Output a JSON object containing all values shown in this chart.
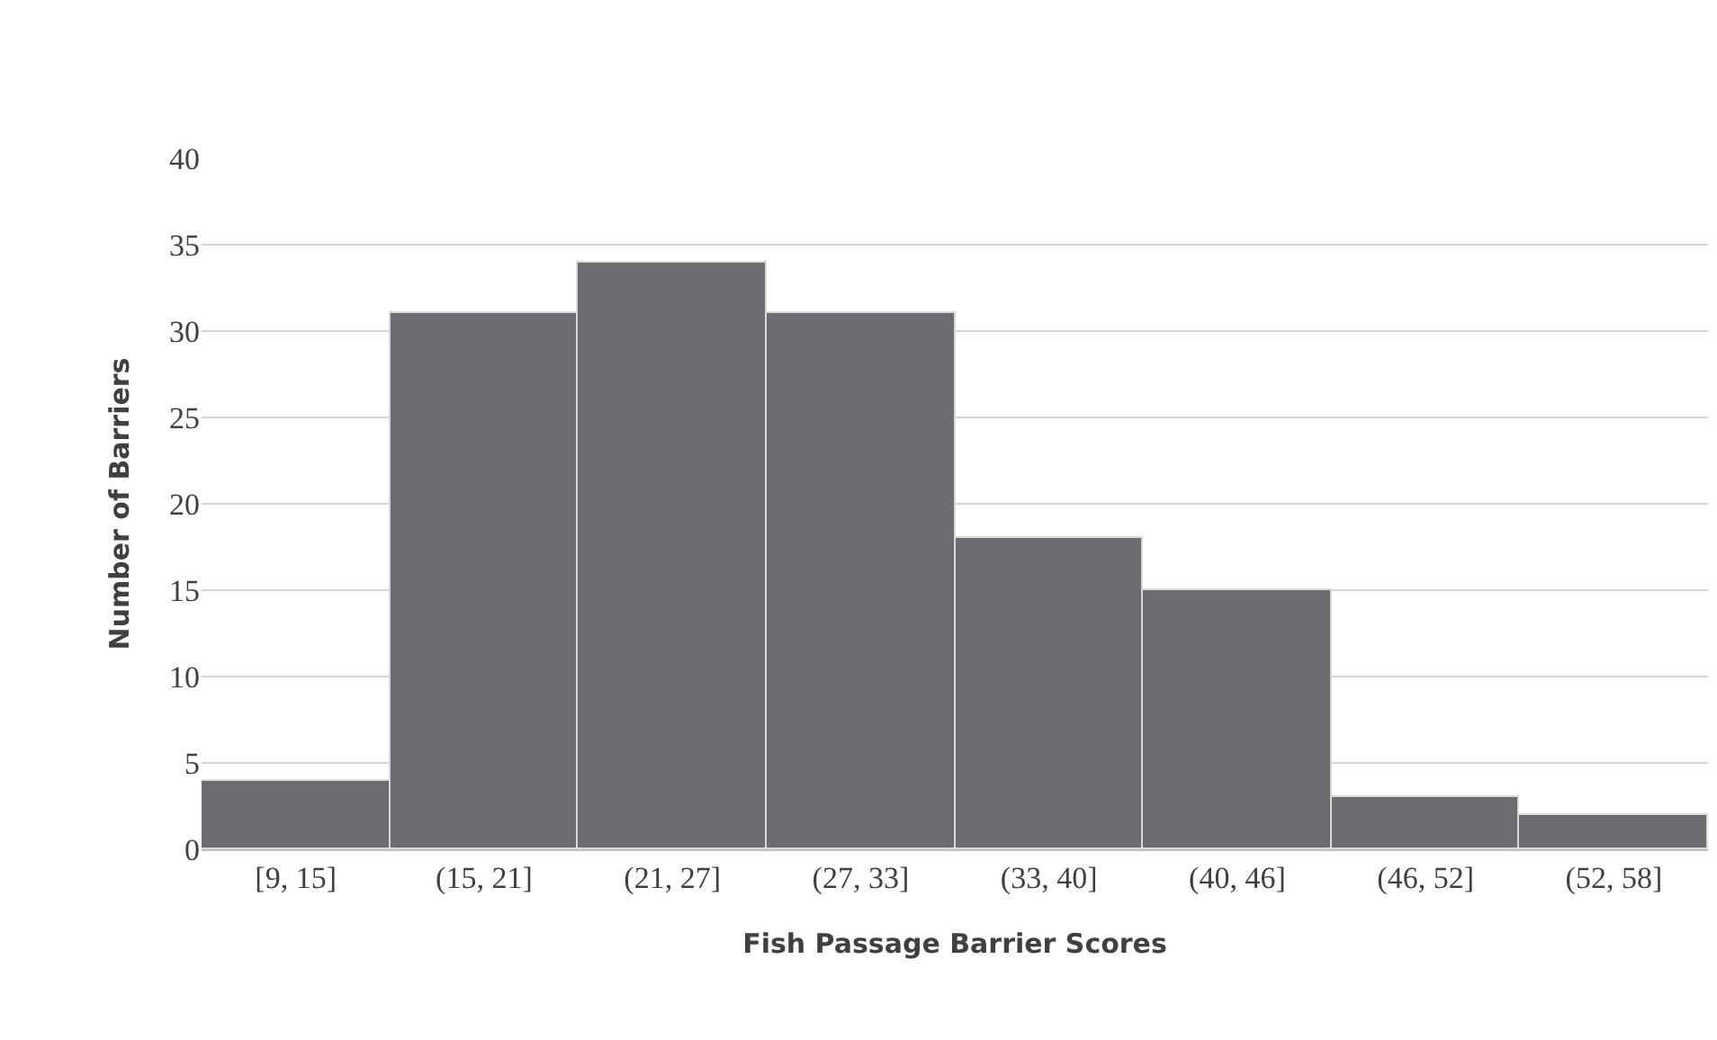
{
  "chart_data": {
    "type": "bar",
    "xlabel": "Fish Passage Barrier Scores",
    "ylabel": "Number of Barriers",
    "categories": [
      "[9, 15]",
      "(15, 21]",
      "(21, 27]",
      "(27, 33]",
      "(33, 40]",
      "(40, 46]",
      "(46, 52]",
      "(52, 58]"
    ],
    "values": [
      4,
      31,
      34,
      31,
      18,
      15,
      3,
      2
    ],
    "color": "#6d6c70",
    "ylim": [
      0,
      40
    ],
    "yticks": [
      0,
      5,
      10,
      15,
      20,
      25,
      30,
      35,
      40
    ],
    "grid": "y"
  }
}
